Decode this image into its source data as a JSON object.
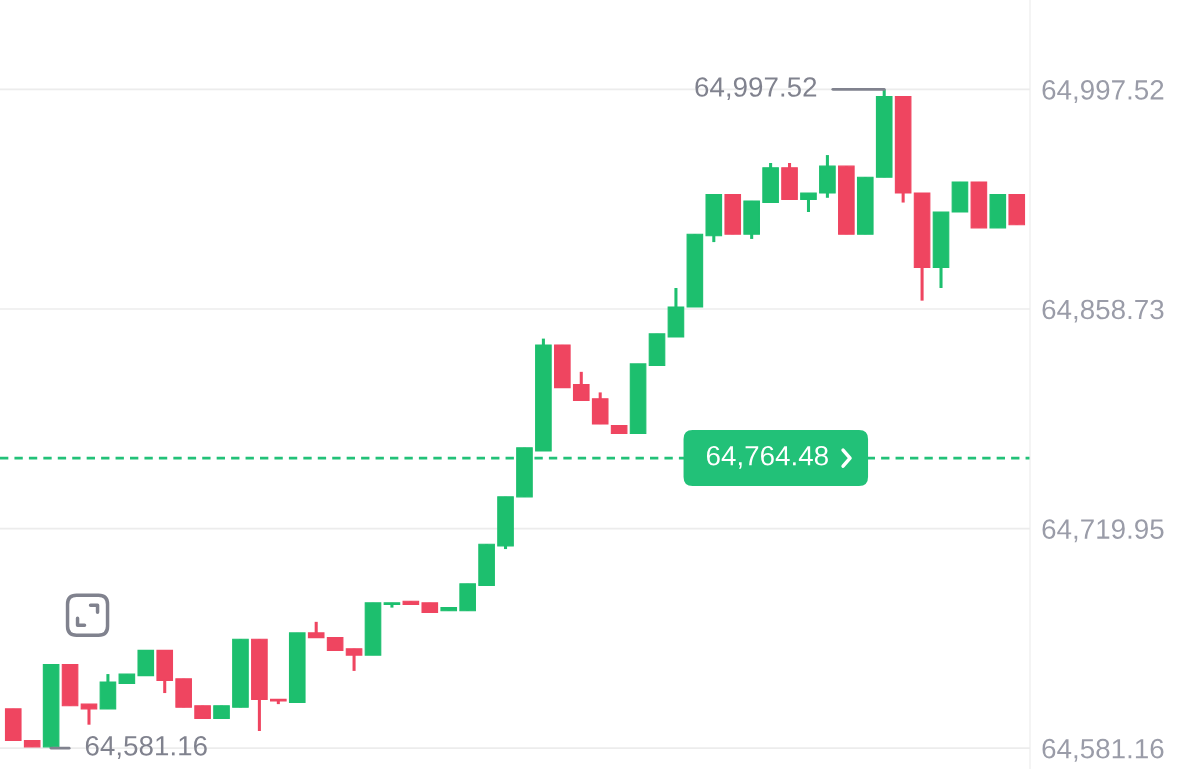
{
  "chart_data": {
    "type": "candlestick",
    "categories": [
      null,
      null,
      null,
      null,
      null,
      null,
      null,
      null,
      null,
      null,
      null,
      null,
      null,
      null,
      null,
      null,
      null,
      null,
      null,
      null,
      null,
      null,
      null,
      null,
      null,
      null,
      null,
      null,
      null,
      null,
      null,
      null,
      null,
      null,
      null,
      null,
      null,
      null,
      null,
      null,
      null,
      null,
      null,
      null,
      null,
      null,
      null,
      null,
      null,
      null,
      null,
      null,
      null,
      null
    ],
    "ohlc": [
      [
        64606,
        64606,
        64586,
        64586
      ],
      [
        64586,
        64586,
        64582,
        64582
      ],
      [
        64582,
        64634,
        64581.16,
        64634
      ],
      [
        64634,
        64634,
        64608,
        64608
      ],
      [
        64609,
        64609,
        64596,
        64606
      ],
      [
        64606,
        64628,
        64606,
        64623
      ],
      [
        64622,
        64628,
        64622,
        64628
      ],
      [
        64627,
        64643,
        64627,
        64643
      ],
      [
        64643,
        64643,
        64616,
        64624
      ],
      [
        64625,
        64625,
        64607,
        64607
      ],
      [
        64608,
        64608,
        64600,
        64600
      ],
      [
        64600,
        64608,
        64600,
        64608
      ],
      [
        64607,
        64650,
        64607,
        64650
      ],
      [
        64650,
        64650,
        64592,
        64612
      ],
      [
        64612,
        64612,
        64609,
        64611
      ],
      [
        64610,
        64654,
        64610,
        64654
      ],
      [
        64654,
        64661,
        64651,
        64651
      ],
      [
        64651,
        64651,
        64643,
        64643
      ],
      [
        64644,
        64644,
        64630,
        64640
      ],
      [
        64640,
        64673,
        64640,
        64673
      ],
      [
        64672,
        64673,
        64670,
        64673
      ],
      [
        64674,
        64674,
        64672,
        64672
      ],
      [
        64673,
        64673,
        64667,
        64667
      ],
      [
        64668,
        64670,
        64668,
        64670
      ],
      [
        64668,
        64685,
        64668,
        64685
      ],
      [
        64684,
        64710,
        64684,
        64710
      ],
      [
        64709,
        64740,
        64707,
        64740
      ],
      [
        64740,
        64771,
        64740,
        64771
      ],
      [
        64769,
        64840,
        64769,
        64836
      ],
      [
        64836,
        64836,
        64809,
        64809
      ],
      [
        64811,
        64819,
        64801,
        64801
      ],
      [
        64802,
        64806,
        64786,
        64786
      ],
      [
        64785,
        64785,
        64780,
        64780
      ],
      [
        64780,
        64824,
        64780,
        64824
      ],
      [
        64823,
        64843,
        64823,
        64843
      ],
      [
        64841,
        64872,
        64841,
        64860
      ],
      [
        64860,
        64906,
        64860,
        64906
      ],
      [
        64905,
        64931,
        64901,
        64931
      ],
      [
        64931,
        64931,
        64906,
        64906
      ],
      [
        64906,
        64927,
        64903,
        64927
      ],
      [
        64926,
        64951,
        64926,
        64948
      ],
      [
        64948,
        64951,
        64928,
        64928
      ],
      [
        64928,
        64932,
        64920,
        64932
      ],
      [
        64932,
        64956,
        64929,
        64949
      ],
      [
        64949,
        64949,
        64906,
        64906
      ],
      [
        64906,
        64942,
        64906,
        64942
      ],
      [
        64942,
        64997.52,
        64942,
        64993
      ],
      [
        64993,
        64993,
        64926,
        64932
      ],
      [
        64932,
        64932,
        64864,
        64885
      ],
      [
        64885,
        64920,
        64872,
        64920
      ],
      [
        64920,
        64939,
        64920,
        64939
      ],
      [
        64939,
        64939,
        64910,
        64910
      ],
      [
        64910,
        64931,
        64910,
        64931
      ],
      [
        64931,
        64931,
        64912,
        64912
      ]
    ],
    "colors": [
      "#ef4560",
      "#ef4560",
      "#1dbf6e",
      "#ef4560",
      "#ef4560",
      "#1dbf6e",
      "#1dbf6e",
      "#1dbf6e",
      "#ef4560",
      "#ef4560",
      "#ef4560",
      "#1dbf6e",
      "#1dbf6e",
      "#ef4560",
      "#ef4560",
      "#1dbf6e",
      "#ef4560",
      "#ef4560",
      "#ef4560",
      "#1dbf6e",
      "#1dbf6e",
      "#ef4560",
      "#ef4560",
      "#1dbf6e",
      "#1dbf6e",
      "#1dbf6e",
      "#1dbf6e",
      "#1dbf6e",
      "#1dbf6e",
      "#ef4560",
      "#ef4560",
      "#ef4560",
      "#ef4560",
      "#1dbf6e",
      "#1dbf6e",
      "#1dbf6e",
      "#1dbf6e",
      "#1dbf6e",
      "#ef4560",
      "#1dbf6e",
      "#1dbf6e",
      "#ef4560",
      "#1dbf6e",
      "#1dbf6e",
      "#ef4560",
      "#1dbf6e",
      "#1dbf6e",
      "#ef4560",
      "#ef4560",
      "#1dbf6e",
      "#1dbf6e",
      "#ef4560",
      "#1dbf6e",
      "#ef4560"
    ],
    "ylim": [
      64568,
      65054
    ],
    "yticks": [
      {
        "value": 64581.16,
        "label": "64,581.16"
      },
      {
        "value": 64719.95,
        "label": "64,719.95"
      },
      {
        "value": 64858.73,
        "label": "64,858.73"
      },
      {
        "value": 64997.52,
        "label": "64,997.52"
      }
    ],
    "grid": "y",
    "tick_labels": "y",
    "annotations": [
      "64,997.52",
      "64,581.16"
    ],
    "ref_lines": [
      {
        "axis": "y",
        "value": 64764.48,
        "label": "64,764.48",
        "color": "#22c178",
        "line_style": "dashed"
      }
    ]
  }
}
